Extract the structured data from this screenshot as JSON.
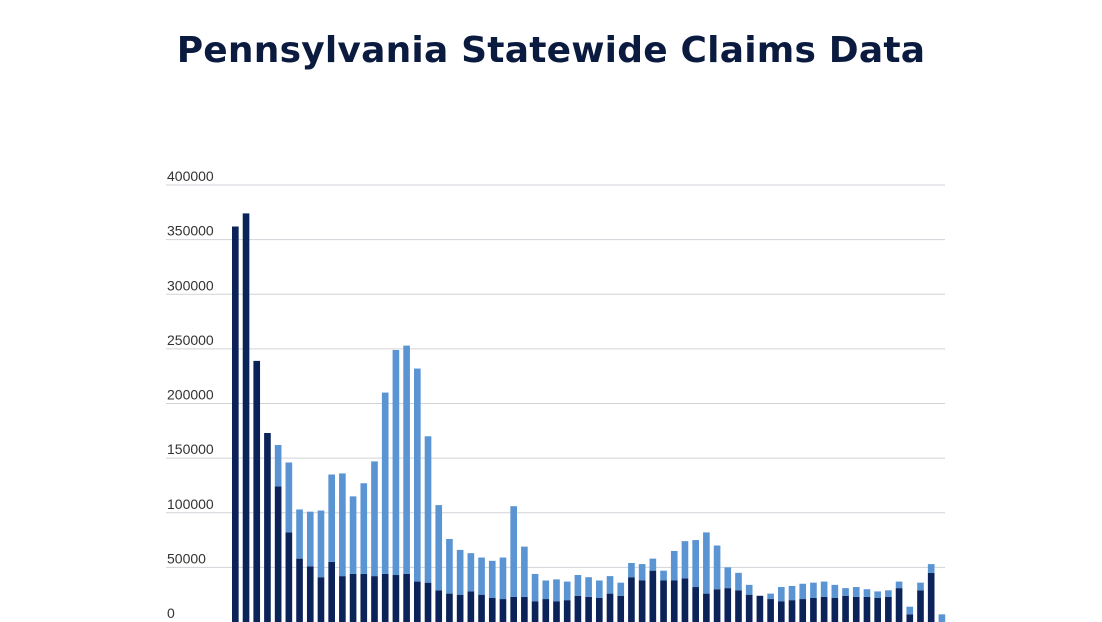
{
  "page": {
    "title": "Pennsylvania Statewide Claims Data"
  },
  "chart_data": {
    "type": "bar",
    "stacked": true,
    "title": "Pennsylvania Statewide Claims Data",
    "xlabel": "",
    "ylabel": "",
    "ylim": [
      0,
      400000
    ],
    "yticks": [
      {
        "value": 0,
        "label": "0"
      },
      {
        "value": 50000,
        "label": "50000"
      },
      {
        "value": 100000,
        "label": "100000"
      },
      {
        "value": 150000,
        "label": "150000"
      },
      {
        "value": 200000,
        "label": "200000"
      },
      {
        "value": 250000,
        "label": "250000"
      },
      {
        "value": 300000,
        "label": "300000"
      },
      {
        "value": 350000,
        "label": "350000"
      },
      {
        "value": 400000,
        "label": "400000"
      }
    ],
    "grid": true,
    "legend": "none",
    "series": [
      {
        "color": "#0b2358",
        "values": [
          362000,
          374000,
          239000,
          173000,
          124000,
          82000,
          58000,
          51000,
          41000,
          55000,
          42000,
          44000,
          44000,
          42000,
          44000,
          43000,
          44000,
          37000,
          36000,
          29000,
          26000,
          25000,
          28000,
          25000,
          22000,
          21000,
          23000,
          23000,
          19000,
          21000,
          19000,
          20000,
          24000,
          23000,
          22000,
          26000,
          24000,
          41000,
          38000,
          47000,
          38000,
          38000,
          40000,
          32000,
          26000,
          30000,
          31000,
          29000,
          25000,
          24000,
          21000,
          19000,
          20000,
          21000,
          22000,
          23000,
          22000,
          24000,
          23000,
          23000,
          22000,
          23000,
          31000,
          7000,
          29000,
          45000,
          0
        ]
      },
      {
        "color": "#5a94d3",
        "values": [
          0,
          0,
          0,
          0,
          38000,
          64000,
          45000,
          50000,
          61000,
          80000,
          94000,
          71000,
          83000,
          105000,
          166000,
          206000,
          209000,
          195000,
          134000,
          78000,
          50000,
          41000,
          35000,
          34000,
          34000,
          38000,
          83000,
          46000,
          25000,
          17000,
          20000,
          17000,
          19000,
          18000,
          16000,
          16000,
          12000,
          13000,
          15000,
          11000,
          9000,
          27000,
          34000,
          43000,
          56000,
          40000,
          19000,
          16000,
          9000,
          0,
          5000,
          13000,
          13000,
          14000,
          14000,
          14000,
          12000,
          7000,
          9000,
          7000,
          6000,
          6000,
          6000,
          7000,
          7000,
          8000,
          7000
        ]
      }
    ]
  }
}
